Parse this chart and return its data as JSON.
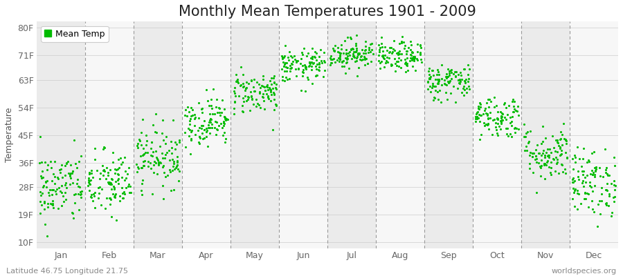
{
  "title": "Monthly Mean Temperatures 1901 - 2009",
  "ylabel": "Temperature",
  "bottom_left_text": "Latitude 46.75 Longitude 21.75",
  "bottom_right_text": "worldspecies.org",
  "legend_label": "Mean Temp",
  "dot_color": "#00BB00",
  "background_color": "#FFFFFF",
  "band_color_odd": "#EBEBEB",
  "band_color_even": "#F7F7F7",
  "months": [
    "Jan",
    "Feb",
    "Mar",
    "Apr",
    "May",
    "Jun",
    "Jul",
    "Aug",
    "Sep",
    "Oct",
    "Nov",
    "Dec"
  ],
  "yticks": [
    10,
    19,
    28,
    36,
    45,
    54,
    63,
    71,
    80
  ],
  "ylim": [
    8,
    82
  ],
  "xlim": [
    0,
    12
  ],
  "num_years": 109,
  "mean_temps_f": [
    28.0,
    29.0,
    38.0,
    49.5,
    59.0,
    67.5,
    71.5,
    70.5,
    62.5,
    51.0,
    39.0,
    29.5
  ],
  "std_temps_f": [
    6.0,
    5.5,
    5.0,
    4.0,
    3.5,
    2.8,
    2.5,
    2.5,
    3.0,
    3.5,
    4.5,
    5.5
  ],
  "title_fontsize": 15,
  "label_fontsize": 9,
  "tick_fontsize": 9,
  "annotation_fontsize": 8,
  "dot_size": 5,
  "random_seed": 42
}
